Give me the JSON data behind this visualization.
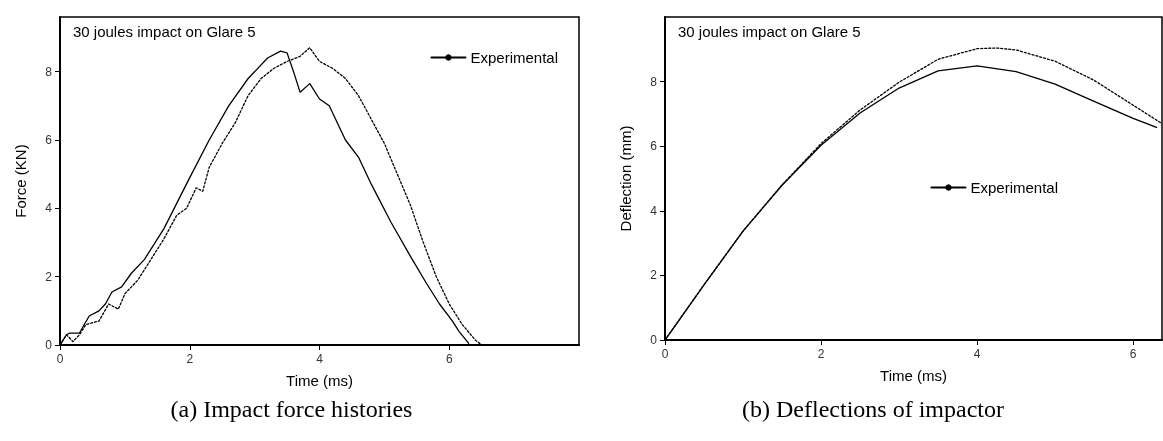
{
  "chart_data": [
    {
      "type": "line",
      "title": "30 joules impact on Glare 5",
      "xlabel": "Time (ms)",
      "ylabel": "Force (KN)",
      "xlim": [
        0,
        8
      ],
      "ylim": [
        0,
        9.6
      ],
      "xticks": [
        0,
        2,
        4,
        6
      ],
      "yticks": [
        0,
        2,
        4,
        6,
        8
      ],
      "grid": false,
      "legend": "top right",
      "marker": "none",
      "annotations": [
        "(a) Impact force histories"
      ],
      "series": [
        {
          "color": "#000000",
          "line_style": "dotted",
          "x": [
            0,
            0.1,
            0.2,
            0.3,
            0.4,
            0.6,
            0.75,
            0.9,
            1.0,
            1.2,
            1.4,
            1.6,
            1.8,
            1.95,
            2.1,
            2.2,
            2.3,
            2.5,
            2.7,
            2.9,
            3.1,
            3.3,
            3.5,
            3.7,
            3.85,
            4.0,
            4.2,
            4.4,
            4.6,
            4.8,
            5.0,
            5.2,
            5.4,
            5.6,
            5.8,
            6.0,
            6.2,
            6.4,
            6.5,
            8.0
          ],
          "values": [
            0,
            0.3,
            0.1,
            0.3,
            0.6,
            0.7,
            1.2,
            1.05,
            1.5,
            1.9,
            2.5,
            3.1,
            3.8,
            4.0,
            4.6,
            4.5,
            5.2,
            5.9,
            6.5,
            7.3,
            7.8,
            8.1,
            8.3,
            8.45,
            8.7,
            8.3,
            8.1,
            7.8,
            7.3,
            6.6,
            5.9,
            5.0,
            4.1,
            3.0,
            2.0,
            1.2,
            0.6,
            0.15,
            0,
            0
          ]
        },
        {
          "name": "Experimental",
          "color": "#000000",
          "line_style": "solid",
          "x": [
            0,
            0.1,
            0.15,
            0.3,
            0.45,
            0.6,
            0.7,
            0.8,
            0.95,
            1.1,
            1.3,
            1.6,
            2.0,
            2.3,
            2.6,
            2.9,
            3.2,
            3.4,
            3.5,
            3.6,
            3.7,
            3.85,
            4.0,
            4.15,
            4.4,
            4.6,
            4.8,
            5.1,
            5.4,
            5.65,
            5.85,
            6.05,
            6.15,
            6.3
          ],
          "values": [
            0,
            0.3,
            0.35,
            0.35,
            0.85,
            1.0,
            1.2,
            1.55,
            1.7,
            2.1,
            2.5,
            3.4,
            4.9,
            6.0,
            7.0,
            7.8,
            8.4,
            8.6,
            8.55,
            8.0,
            7.4,
            7.65,
            7.2,
            7.0,
            6.0,
            5.5,
            4.7,
            3.6,
            2.6,
            1.8,
            1.2,
            0.7,
            0.4,
            0.05
          ]
        }
      ]
    },
    {
      "type": "line",
      "title": "30 joules impact on Glare 5",
      "xlabel": "Time (ms)",
      "ylabel": "Deflection (mm)",
      "xlim": [
        0,
        6.37
      ],
      "ylim": [
        0,
        10
      ],
      "xticks": [
        0,
        2,
        4,
        6
      ],
      "yticks": [
        0,
        2,
        4,
        6,
        8
      ],
      "grid": false,
      "legend": "right",
      "marker": "none",
      "annotations": [
        "(b) Deflections of impactor"
      ],
      "series": [
        {
          "color": "#000000",
          "line_style": "dotted",
          "x": [
            0,
            0.5,
            1,
            1.5,
            2,
            2.5,
            3,
            3.5,
            4,
            4.25,
            4.5,
            5,
            5.5,
            6,
            6.37
          ],
          "values": [
            0,
            1.71,
            3.37,
            4.8,
            6.08,
            7.12,
            7.98,
            8.69,
            9.02,
            9.04,
            8.98,
            8.63,
            8.04,
            7.27,
            6.7
          ]
        },
        {
          "name": "Experimental",
          "color": "#000000",
          "line_style": "solid",
          "x": [
            0,
            0.5,
            1,
            1.5,
            2,
            2.5,
            3,
            3.5,
            4,
            4.5,
            5,
            5.5,
            6,
            6.3
          ],
          "values": [
            0,
            1.71,
            3.37,
            4.79,
            6.03,
            7.03,
            7.8,
            8.33,
            8.49,
            8.31,
            7.92,
            7.39,
            6.86,
            6.58
          ]
        }
      ]
    }
  ]
}
